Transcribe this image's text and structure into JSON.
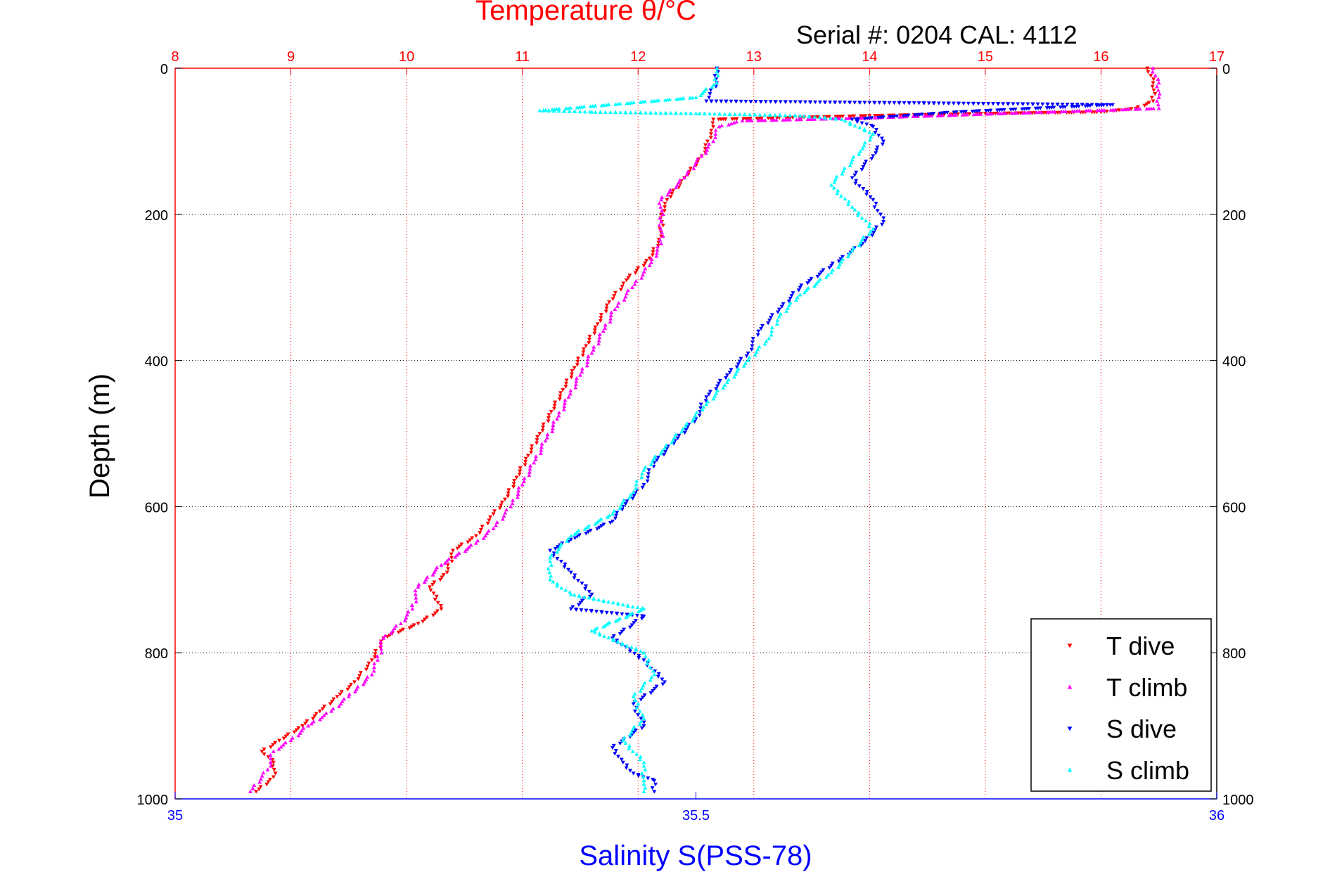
{
  "chart_data": {
    "type": "scatter",
    "title": "Temperature θ/°C",
    "subtitle": "Serial #: 0204  CAL: 4112",
    "ylabel": "Depth (m)",
    "xlabel": "Salinity S(PSS-78)",
    "y_axis": {
      "min": 0,
      "max": 1000,
      "reversed": true,
      "ticks": [
        0,
        200,
        400,
        600,
        800,
        1000
      ],
      "tick_labels": [
        "0",
        "200",
        "400",
        "600",
        "800",
        "1000"
      ]
    },
    "temperature_axis": {
      "position": "top",
      "min": 8,
      "max": 17,
      "ticks": [
        8,
        9,
        10,
        11,
        12,
        13,
        14,
        15,
        16,
        17
      ],
      "tick_labels": [
        "8",
        "9",
        "10",
        "11",
        "12",
        "13",
        "14",
        "15",
        "16",
        "17"
      ]
    },
    "salinity_axis": {
      "position": "bottom",
      "min": 35,
      "max": 36,
      "ticks": [
        35,
        35.5,
        36
      ],
      "tick_labels": [
        "35",
        "35.5",
        "36"
      ]
    },
    "grid": true,
    "legend_placement": "bottom-right",
    "series": [
      {
        "name": "T dive",
        "axis": "temperature",
        "color": "#ff0000",
        "marker": "triangle-down",
        "points": [
          [
            16.4,
            0
          ],
          [
            16.45,
            20
          ],
          [
            16.45,
            45
          ],
          [
            16.3,
            55
          ],
          [
            16.0,
            60
          ],
          [
            15.0,
            62
          ],
          [
            14.0,
            65
          ],
          [
            13.2,
            68
          ],
          [
            12.65,
            70
          ],
          [
            12.65,
            80
          ],
          [
            12.6,
            100
          ],
          [
            12.55,
            120
          ],
          [
            12.4,
            150
          ],
          [
            12.25,
            180
          ],
          [
            12.2,
            200
          ],
          [
            12.2,
            230
          ],
          [
            12.1,
            260
          ],
          [
            11.9,
            290
          ],
          [
            11.75,
            320
          ],
          [
            11.65,
            350
          ],
          [
            11.55,
            380
          ],
          [
            11.45,
            410
          ],
          [
            11.35,
            440
          ],
          [
            11.25,
            470
          ],
          [
            11.15,
            500
          ],
          [
            11.05,
            530
          ],
          [
            10.95,
            560
          ],
          [
            10.85,
            590
          ],
          [
            10.75,
            610
          ],
          [
            10.6,
            640
          ],
          [
            10.4,
            660
          ],
          [
            10.35,
            690
          ],
          [
            10.2,
            710
          ],
          [
            10.3,
            740
          ],
          [
            10.1,
            760
          ],
          [
            9.8,
            780
          ],
          [
            9.7,
            810
          ],
          [
            9.55,
            840
          ],
          [
            9.4,
            860
          ],
          [
            9.25,
            880
          ],
          [
            9.1,
            900
          ],
          [
            8.9,
            920
          ],
          [
            8.75,
            935
          ],
          [
            8.85,
            950
          ],
          [
            8.85,
            970
          ],
          [
            8.7,
            990
          ]
        ]
      },
      {
        "name": "T climb",
        "axis": "temperature",
        "color": "#ff00ff",
        "marker": "triangle-up",
        "points": [
          [
            16.45,
            0
          ],
          [
            16.5,
            20
          ],
          [
            16.5,
            40
          ],
          [
            16.5,
            55
          ],
          [
            14.0,
            68
          ],
          [
            12.9,
            72
          ],
          [
            12.7,
            80
          ],
          [
            12.65,
            100
          ],
          [
            12.55,
            120
          ],
          [
            12.4,
            150
          ],
          [
            12.2,
            180
          ],
          [
            12.2,
            210
          ],
          [
            12.2,
            240
          ],
          [
            12.1,
            270
          ],
          [
            11.95,
            300
          ],
          [
            11.8,
            330
          ],
          [
            11.7,
            360
          ],
          [
            11.6,
            390
          ],
          [
            11.5,
            420
          ],
          [
            11.4,
            450
          ],
          [
            11.3,
            480
          ],
          [
            11.2,
            510
          ],
          [
            11.1,
            540
          ],
          [
            11.0,
            570
          ],
          [
            10.9,
            600
          ],
          [
            10.75,
            630
          ],
          [
            10.6,
            650
          ],
          [
            10.3,
            680
          ],
          [
            10.1,
            710
          ],
          [
            10.05,
            740
          ],
          [
            9.95,
            760
          ],
          [
            9.8,
            780
          ],
          [
            9.75,
            810
          ],
          [
            9.7,
            830
          ],
          [
            9.5,
            860
          ],
          [
            9.35,
            880
          ],
          [
            9.15,
            900
          ],
          [
            9.0,
            920
          ],
          [
            8.85,
            935
          ],
          [
            8.8,
            960
          ],
          [
            8.65,
            990
          ]
        ]
      },
      {
        "name": "S dive",
        "axis": "salinity",
        "color": "#0000ff",
        "marker": "triangle-down",
        "points": [
          [
            35.52,
            0
          ],
          [
            35.52,
            20
          ],
          [
            35.51,
            45
          ],
          [
            35.9,
            50
          ],
          [
            35.75,
            60
          ],
          [
            35.65,
            70
          ],
          [
            35.67,
            80
          ],
          [
            35.68,
            100
          ],
          [
            35.67,
            120
          ],
          [
            35.65,
            150
          ],
          [
            35.67,
            180
          ],
          [
            35.68,
            210
          ],
          [
            35.66,
            240
          ],
          [
            35.63,
            270
          ],
          [
            35.6,
            300
          ],
          [
            35.58,
            330
          ],
          [
            35.56,
            360
          ],
          [
            35.55,
            390
          ],
          [
            35.53,
            420
          ],
          [
            35.51,
            450
          ],
          [
            35.5,
            480
          ],
          [
            35.48,
            510
          ],
          [
            35.46,
            540
          ],
          [
            35.45,
            570
          ],
          [
            35.43,
            600
          ],
          [
            35.42,
            620
          ],
          [
            35.38,
            645
          ],
          [
            35.36,
            660
          ],
          [
            35.38,
            690
          ],
          [
            35.4,
            720
          ],
          [
            35.38,
            740
          ],
          [
            35.45,
            750
          ],
          [
            35.42,
            780
          ],
          [
            35.45,
            810
          ],
          [
            35.47,
            840
          ],
          [
            35.44,
            870
          ],
          [
            35.45,
            900
          ],
          [
            35.42,
            930
          ],
          [
            35.43,
            950
          ],
          [
            35.44,
            965
          ],
          [
            35.46,
            975
          ],
          [
            35.46,
            990
          ]
        ]
      },
      {
        "name": "S climb",
        "axis": "salinity",
        "color": "#00ffff",
        "marker": "triangle-up",
        "points": [
          [
            35.52,
            0
          ],
          [
            35.52,
            20
          ],
          [
            35.5,
            40
          ],
          [
            35.35,
            58
          ],
          [
            35.4,
            60
          ],
          [
            35.5,
            62
          ],
          [
            35.6,
            65
          ],
          [
            35.64,
            70
          ],
          [
            35.67,
            90
          ],
          [
            35.66,
            110
          ],
          [
            35.63,
            160
          ],
          [
            35.65,
            190
          ],
          [
            35.67,
            220
          ],
          [
            35.65,
            250
          ],
          [
            35.63,
            280
          ],
          [
            35.6,
            310
          ],
          [
            35.58,
            340
          ],
          [
            35.57,
            370
          ],
          [
            35.55,
            400
          ],
          [
            35.53,
            430
          ],
          [
            35.51,
            460
          ],
          [
            35.49,
            490
          ],
          [
            35.47,
            520
          ],
          [
            35.45,
            550
          ],
          [
            35.44,
            580
          ],
          [
            35.42,
            610
          ],
          [
            35.38,
            640
          ],
          [
            35.36,
            670
          ],
          [
            35.36,
            700
          ],
          [
            35.38,
            720
          ],
          [
            35.45,
            740
          ],
          [
            35.4,
            770
          ],
          [
            35.45,
            800
          ],
          [
            35.46,
            830
          ],
          [
            35.44,
            860
          ],
          [
            35.45,
            890
          ],
          [
            35.43,
            920
          ],
          [
            35.45,
            950
          ],
          [
            35.45,
            975
          ],
          [
            35.45,
            990
          ]
        ]
      }
    ]
  }
}
